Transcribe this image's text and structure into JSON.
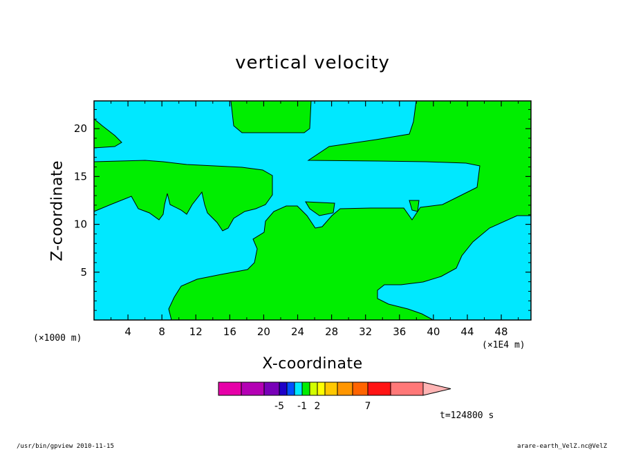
{
  "chart_data": {
    "type": "heatmap",
    "title": "vertical velocity",
    "xlabel": "X-coordinate",
    "ylabel": "Z-coordinate",
    "x_scale_note": "(×1000 m)",
    "x_unit_note": "(×1E4 m)",
    "time_label": "t=124800 s",
    "xlim": [
      0,
      51.5
    ],
    "ylim": [
      0,
      22.9
    ],
    "x_ticks": [
      4,
      8,
      12,
      16,
      20,
      24,
      28,
      32,
      36,
      40,
      44,
      48
    ],
    "y_ticks": [
      5,
      10,
      15,
      20
    ],
    "regions": [
      {
        "name": "cyan",
        "level_range": "-1 to 0",
        "color": "#00e8ff"
      },
      {
        "name": "green",
        "level_range": "0 to 1",
        "color": "#00ee00"
      }
    ],
    "colorbar": {
      "colors": [
        "#e600a8",
        "#b400b4",
        "#7800b8",
        "#1e00c8",
        "#0050ff",
        "#00e8ff",
        "#00ee00",
        "#d2ff00",
        "#ffff00",
        "#ffc800",
        "#ff9600",
        "#ff6400",
        "#ff1414",
        "#ff7878"
      ],
      "extend_color": "#ffb4b4",
      "labels": [
        {
          "text": "-5",
          "index": 3
        },
        {
          "text": "-1",
          "index": 6
        },
        {
          "text": "2",
          "index": 8
        },
        {
          "text": "7",
          "index": 12
        }
      ]
    }
  },
  "footer": {
    "left": "/usr/bin/gpview   2010-11-15",
    "right": "arare-earth_VelZ.nc@VelZ"
  }
}
